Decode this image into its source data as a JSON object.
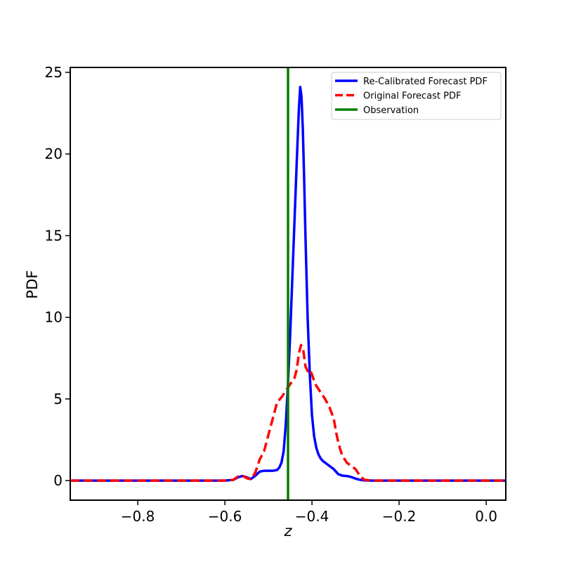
{
  "chart_data": {
    "type": "line",
    "title": "",
    "xlabel": "z",
    "ylabel": "PDF",
    "xlim": [
      -0.955,
      0.045
    ],
    "ylim": [
      -1.2,
      25.3
    ],
    "xticks": [
      -0.8,
      -0.6,
      -0.4,
      -0.2,
      0.0
    ],
    "xtick_labels": [
      "−0.8",
      "−0.6",
      "−0.4",
      "−0.2",
      "0.0"
    ],
    "yticks": [
      0,
      5,
      10,
      15,
      20,
      25
    ],
    "ytick_labels": [
      "0",
      "5",
      "10",
      "15",
      "20",
      "25"
    ],
    "grid": false,
    "legend_position": "top-right",
    "series": [
      {
        "name": "Re-Calibrated Forecast PDF",
        "color": "#0000ff",
        "style": "solid",
        "x": [
          -0.955,
          -0.6,
          -0.58,
          -0.57,
          -0.56,
          -0.55,
          -0.54,
          -0.53,
          -0.52,
          -0.51,
          -0.5,
          -0.49,
          -0.48,
          -0.475,
          -0.47,
          -0.465,
          -0.46,
          -0.455,
          -0.45,
          -0.445,
          -0.44,
          -0.435,
          -0.43,
          -0.427,
          -0.424,
          -0.421,
          -0.418,
          -0.415,
          -0.41,
          -0.405,
          -0.4,
          -0.395,
          -0.39,
          -0.385,
          -0.38,
          -0.375,
          -0.37,
          -0.365,
          -0.36,
          -0.355,
          -0.35,
          -0.345,
          -0.34,
          -0.33,
          -0.32,
          -0.31,
          -0.3,
          -0.29,
          -0.28,
          -0.26,
          0.045
        ],
        "y": [
          0,
          0,
          0.05,
          0.2,
          0.28,
          0.2,
          0.1,
          0.3,
          0.55,
          0.6,
          0.6,
          0.6,
          0.65,
          0.8,
          1.1,
          1.8,
          3.5,
          6,
          9,
          12.5,
          16,
          19.5,
          22.8,
          24.1,
          23.5,
          21.5,
          18.5,
          15,
          10,
          6.5,
          4,
          2.7,
          2,
          1.6,
          1.35,
          1.2,
          1.1,
          1.0,
          0.9,
          0.8,
          0.7,
          0.55,
          0.4,
          0.3,
          0.28,
          0.22,
          0.12,
          0.05,
          0.01,
          0,
          0
        ]
      },
      {
        "name": "Original Forecast PDF",
        "color": "#ff0000",
        "style": "dashed",
        "x": [
          -0.955,
          -0.6,
          -0.58,
          -0.57,
          -0.56,
          -0.55,
          -0.54,
          -0.53,
          -0.52,
          -0.51,
          -0.5,
          -0.49,
          -0.48,
          -0.47,
          -0.46,
          -0.45,
          -0.44,
          -0.435,
          -0.43,
          -0.425,
          -0.42,
          -0.415,
          -0.41,
          -0.405,
          -0.4,
          -0.395,
          -0.39,
          -0.385,
          -0.38,
          -0.37,
          -0.36,
          -0.35,
          -0.345,
          -0.34,
          -0.335,
          -0.33,
          -0.32,
          -0.31,
          -0.3,
          -0.29,
          -0.28,
          -0.26,
          0.045
        ],
        "y": [
          0,
          0,
          0.05,
          0.25,
          0.3,
          0.15,
          0.08,
          0.5,
          1.3,
          1.8,
          2.8,
          3.8,
          4.8,
          5.1,
          5.5,
          5.9,
          6.3,
          6.8,
          7.8,
          8.3,
          8.0,
          7.0,
          6.7,
          6.8,
          6.5,
          6.1,
          5.8,
          5.6,
          5.4,
          5.0,
          4.5,
          3.8,
          3.0,
          2.4,
          1.9,
          1.5,
          1.1,
          0.9,
          0.7,
          0.3,
          0.05,
          0,
          0
        ]
      },
      {
        "name": "Observation",
        "color": "#008000",
        "style": "vertical-line",
        "x_value": -0.455
      }
    ]
  }
}
